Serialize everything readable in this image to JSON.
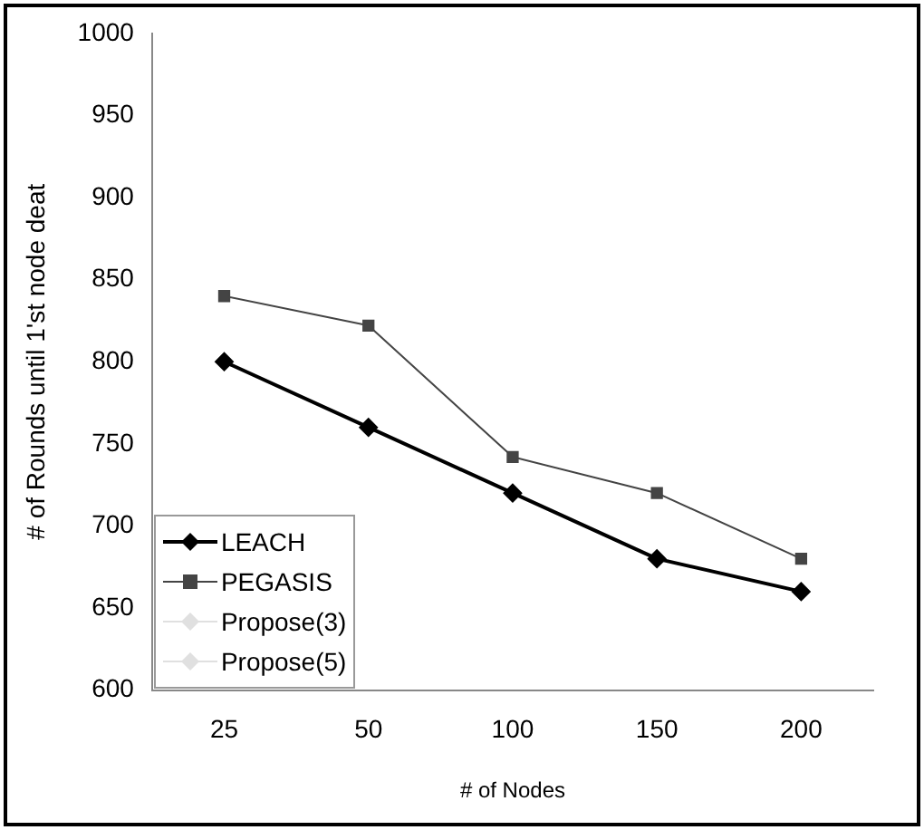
{
  "chart_data": {
    "type": "line",
    "xlabel": "# of Nodes",
    "ylabel": "# of Rounds until 1'st node deat",
    "categories": [
      "25",
      "50",
      "100",
      "150",
      "200"
    ],
    "ylim": [
      600,
      1000
    ],
    "yticks": [
      600,
      650,
      700,
      750,
      800,
      850,
      900,
      950,
      1000
    ],
    "grid": false,
    "legend": "bottom left",
    "marker": "diamond",
    "series": [
      {
        "name": "LEACH",
        "color": "#000000",
        "values": [
          800,
          760,
          720,
          680,
          660
        ]
      },
      {
        "name": "PEGASIS",
        "color": "#444444",
        "marker": "square",
        "values": [
          840,
          822,
          742,
          720,
          680
        ]
      },
      {
        "name": "Propose(3)",
        "color": "#e0e0e0",
        "values": [
          null,
          null,
          null,
          null,
          null
        ]
      },
      {
        "name": "Propose(5)",
        "color": "#e0e0e0",
        "values": [
          null,
          null,
          null,
          null,
          null
        ]
      }
    ]
  }
}
